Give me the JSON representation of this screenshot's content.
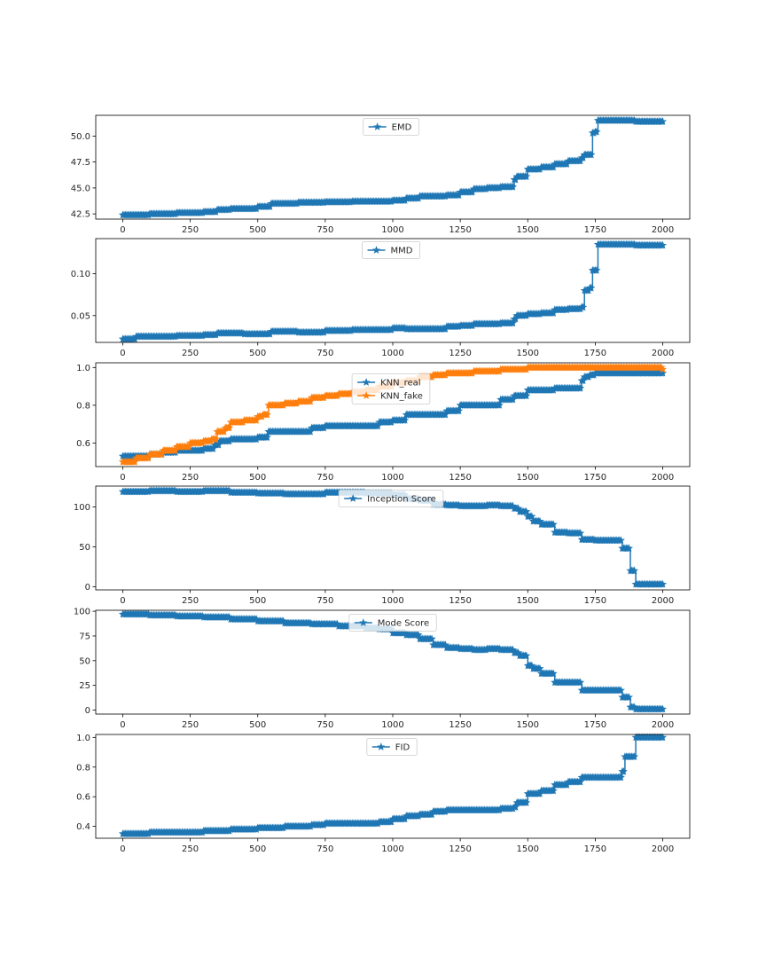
{
  "chart_data": [
    {
      "type": "line",
      "x_ticks": [
        "0",
        "250",
        "500",
        "750",
        "1000",
        "1250",
        "1500",
        "1750",
        "2000"
      ],
      "x_tick_values": [
        0,
        250,
        500,
        750,
        1000,
        1250,
        1500,
        1750,
        2000
      ],
      "y_ticks": [
        "42.5",
        "45.0",
        "47.5",
        "50.0"
      ],
      "y_tick_values": [
        42.5,
        45.0,
        47.5,
        50.0
      ],
      "xlim": [
        -100,
        2100
      ],
      "ylim": [
        42.0,
        52.0
      ],
      "legend_position": "upper center",
      "marker": "star",
      "grid": false,
      "series": [
        {
          "name": "EMD",
          "color": "#1f77b4",
          "x": [
            0,
            100,
            200,
            300,
            350,
            400,
            500,
            550,
            650,
            750,
            850,
            1000,
            1050,
            1100,
            1200,
            1250,
            1300,
            1350,
            1400,
            1450,
            1460,
            1500,
            1550,
            1600,
            1650,
            1700,
            1710,
            1740,
            1750,
            1760,
            1800,
            1850,
            1900,
            2000
          ],
          "y": [
            42.4,
            42.5,
            42.6,
            42.7,
            42.9,
            43.0,
            43.2,
            43.5,
            43.6,
            43.65,
            43.7,
            43.8,
            44.0,
            44.2,
            44.3,
            44.6,
            44.9,
            45.0,
            45.1,
            45.8,
            46.1,
            46.8,
            47.0,
            47.3,
            47.6,
            47.9,
            48.2,
            50.3,
            50.4,
            51.5,
            51.5,
            51.5,
            51.4,
            51.4
          ]
        }
      ]
    },
    {
      "type": "line",
      "x_ticks": [
        "0",
        "250",
        "500",
        "750",
        "1000",
        "1250",
        "1500",
        "1750",
        "2000"
      ],
      "x_tick_values": [
        0,
        250,
        500,
        750,
        1000,
        1250,
        1500,
        1750,
        2000
      ],
      "y_ticks": [
        "0.05",
        "0.10"
      ],
      "y_tick_values": [
        0.05,
        0.1
      ],
      "xlim": [
        -100,
        2100
      ],
      "ylim": [
        0.018,
        0.142
      ],
      "legend_position": "upper center",
      "marker": "star",
      "grid": false,
      "series": [
        {
          "name": "MMD",
          "color": "#1f77b4",
          "x": [
            0,
            50,
            100,
            200,
            300,
            350,
            450,
            550,
            650,
            750,
            850,
            950,
            1000,
            1050,
            1150,
            1200,
            1250,
            1300,
            1400,
            1450,
            1460,
            1500,
            1550,
            1600,
            1650,
            1700,
            1710,
            1730,
            1740,
            1750,
            1760,
            1800,
            1900,
            2000
          ],
          "y": [
            0.022,
            0.025,
            0.025,
            0.026,
            0.027,
            0.029,
            0.028,
            0.031,
            0.03,
            0.032,
            0.033,
            0.033,
            0.035,
            0.034,
            0.034,
            0.037,
            0.038,
            0.04,
            0.041,
            0.046,
            0.05,
            0.052,
            0.053,
            0.057,
            0.058,
            0.06,
            0.08,
            0.083,
            0.104,
            0.104,
            0.135,
            0.135,
            0.134,
            0.134
          ]
        }
      ]
    },
    {
      "type": "line",
      "x_ticks": [
        "0",
        "250",
        "500",
        "750",
        "1000",
        "1250",
        "1500",
        "1750",
        "2000"
      ],
      "x_tick_values": [
        0,
        250,
        500,
        750,
        1000,
        1250,
        1500,
        1750,
        2000
      ],
      "y_ticks": [
        "0.6",
        "0.8",
        "1.0"
      ],
      "y_tick_values": [
        0.6,
        0.8,
        1.0
      ],
      "xlim": [
        -100,
        2100
      ],
      "ylim": [
        0.475,
        1.025
      ],
      "legend_position": "upper center",
      "marker": "star",
      "grid": false,
      "series": [
        {
          "name": "KNN_real",
          "color": "#1f77b4",
          "x": [
            0,
            50,
            100,
            150,
            200,
            250,
            300,
            340,
            360,
            400,
            500,
            540,
            600,
            700,
            750,
            850,
            950,
            1000,
            1050,
            1100,
            1200,
            1250,
            1350,
            1400,
            1450,
            1500,
            1600,
            1700,
            1710,
            1730,
            1750,
            1800,
            1900,
            2000
          ],
          "y": [
            0.53,
            0.53,
            0.54,
            0.55,
            0.56,
            0.56,
            0.57,
            0.59,
            0.61,
            0.62,
            0.63,
            0.66,
            0.66,
            0.68,
            0.69,
            0.69,
            0.71,
            0.72,
            0.75,
            0.75,
            0.77,
            0.8,
            0.8,
            0.83,
            0.85,
            0.88,
            0.89,
            0.93,
            0.95,
            0.96,
            0.97,
            0.97,
            0.97,
            0.97
          ]
        },
        {
          "name": "KNN_fake",
          "color": "#ff7f0e",
          "x": [
            0,
            50,
            100,
            150,
            200,
            250,
            300,
            330,
            350,
            380,
            400,
            450,
            500,
            520,
            540,
            600,
            650,
            700,
            750,
            800,
            850,
            900,
            950,
            1000,
            1050,
            1100,
            1150,
            1200,
            1250,
            1300,
            1350,
            1400,
            1450,
            1500,
            1550,
            1600,
            1700,
            1800,
            2000
          ],
          "y": [
            0.5,
            0.52,
            0.54,
            0.56,
            0.58,
            0.6,
            0.61,
            0.62,
            0.66,
            0.68,
            0.71,
            0.72,
            0.74,
            0.75,
            0.8,
            0.81,
            0.82,
            0.84,
            0.85,
            0.86,
            0.87,
            0.88,
            0.9,
            0.92,
            0.93,
            0.95,
            0.96,
            0.97,
            0.97,
            0.98,
            0.98,
            0.99,
            0.99,
            1.0,
            1.0,
            1.0,
            1.0,
            1.0,
            0.99
          ]
        }
      ]
    },
    {
      "type": "line",
      "x_ticks": [
        "0",
        "250",
        "500",
        "750",
        "1000",
        "1250",
        "1500",
        "1750",
        "2000"
      ],
      "x_tick_values": [
        0,
        250,
        500,
        750,
        1000,
        1250,
        1500,
        1750,
        2000
      ],
      "y_ticks": [
        "0",
        "50",
        "100"
      ],
      "y_tick_values": [
        0,
        50,
        100
      ],
      "xlim": [
        -100,
        2100
      ],
      "ylim": [
        -4,
        126
      ],
      "legend_position": "upper center",
      "marker": "star",
      "grid": false,
      "series": [
        {
          "name": "Inception Score",
          "color": "#1f77b4",
          "x": [
            0,
            100,
            200,
            300,
            400,
            500,
            600,
            700,
            750,
            800,
            900,
            1000,
            1050,
            1100,
            1150,
            1200,
            1250,
            1300,
            1350,
            1400,
            1450,
            1470,
            1500,
            1520,
            1550,
            1600,
            1650,
            1700,
            1750,
            1800,
            1840,
            1850,
            1860,
            1880,
            1890,
            1900,
            1950,
            2000
          ],
          "y": [
            119,
            120,
            119,
            120,
            118,
            117,
            116,
            116,
            118,
            118,
            117,
            115,
            110,
            108,
            103,
            102,
            101,
            101,
            102,
            101,
            98,
            94,
            88,
            82,
            78,
            68,
            67,
            59,
            58,
            58,
            58,
            48,
            48,
            20,
            20,
            3,
            3,
            3
          ]
        }
      ]
    },
    {
      "type": "line",
      "x_ticks": [
        "0",
        "250",
        "500",
        "750",
        "1000",
        "1250",
        "1500",
        "1750",
        "2000"
      ],
      "x_tick_values": [
        0,
        250,
        500,
        750,
        1000,
        1250,
        1500,
        1750,
        2000
      ],
      "y_ticks": [
        "0",
        "25",
        "50",
        "75",
        "100"
      ],
      "y_tick_values": [
        0,
        25,
        50,
        75,
        100
      ],
      "xlim": [
        -100,
        2100
      ],
      "ylim": [
        -4,
        101
      ],
      "legend_position": "upper center",
      "marker": "star",
      "grid": false,
      "series": [
        {
          "name": "Mode Score",
          "color": "#1f77b4",
          "x": [
            0,
            100,
            200,
            300,
            400,
            500,
            600,
            700,
            800,
            900,
            950,
            1000,
            1050,
            1100,
            1150,
            1200,
            1250,
            1300,
            1350,
            1400,
            1450,
            1470,
            1500,
            1520,
            1550,
            1600,
            1650,
            1700,
            1750,
            1800,
            1840,
            1850,
            1860,
            1880,
            1890,
            1900,
            1950,
            2000
          ],
          "y": [
            97,
            96,
            95,
            94,
            92,
            90,
            88,
            87,
            85,
            83,
            82,
            78,
            76,
            72,
            66,
            63,
            62,
            61,
            62,
            61,
            58,
            55,
            45,
            42,
            37,
            28,
            28,
            20,
            20,
            20,
            20,
            13,
            13,
            3,
            3,
            1,
            1,
            1
          ]
        }
      ]
    },
    {
      "type": "line",
      "x_ticks": [
        "0",
        "250",
        "500",
        "750",
        "1000",
        "1250",
        "1500",
        "1750",
        "2000"
      ],
      "x_tick_values": [
        0,
        250,
        500,
        750,
        1000,
        1250,
        1500,
        1750,
        2000
      ],
      "y_ticks": [
        "0.4",
        "0.6",
        "0.8",
        "1.0"
      ],
      "y_tick_values": [
        0.4,
        0.6,
        0.8,
        1.0
      ],
      "xlim": [
        -100,
        2100
      ],
      "ylim": [
        0.32,
        1.02
      ],
      "legend_position": "upper center",
      "marker": "star",
      "grid": false,
      "series": [
        {
          "name": "FID",
          "color": "#1f77b4",
          "x": [
            0,
            100,
            200,
            300,
            400,
            500,
            600,
            700,
            750,
            850,
            950,
            1000,
            1050,
            1100,
            1150,
            1200,
            1250,
            1300,
            1400,
            1450,
            1460,
            1500,
            1550,
            1600,
            1650,
            1700,
            1750,
            1800,
            1840,
            1850,
            1860,
            1890,
            1900,
            1950,
            2000
          ],
          "y": [
            0.35,
            0.36,
            0.36,
            0.37,
            0.38,
            0.39,
            0.4,
            0.41,
            0.42,
            0.42,
            0.43,
            0.45,
            0.47,
            0.48,
            0.5,
            0.51,
            0.51,
            0.51,
            0.52,
            0.53,
            0.56,
            0.62,
            0.64,
            0.68,
            0.7,
            0.73,
            0.73,
            0.73,
            0.73,
            0.77,
            0.87,
            0.87,
            1.0,
            1.0,
            1.0
          ]
        }
      ]
    }
  ]
}
